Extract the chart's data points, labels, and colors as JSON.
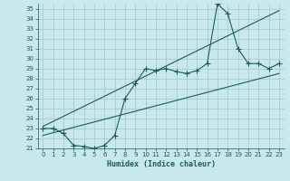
{
  "xlabel": "Humidex (Indice chaleur)",
  "bg_color": "#c8e8ec",
  "grid_color": "#a0c8cc",
  "line_color": "#1a5c5c",
  "xlim": [
    -0.5,
    23.5
  ],
  "ylim": [
    21.0,
    35.5
  ],
  "xticks": [
    0,
    1,
    2,
    3,
    4,
    5,
    6,
    7,
    8,
    9,
    10,
    11,
    12,
    13,
    14,
    15,
    16,
    17,
    18,
    19,
    20,
    21,
    22,
    23
  ],
  "yticks": [
    21,
    22,
    23,
    24,
    25,
    26,
    27,
    28,
    29,
    30,
    31,
    32,
    33,
    34,
    35
  ],
  "main_y": [
    23.0,
    23.0,
    22.5,
    21.3,
    21.2,
    21.0,
    21.3,
    22.3,
    26.0,
    27.5,
    29.0,
    28.8,
    29.0,
    28.7,
    28.5,
    28.8,
    29.5,
    35.5,
    34.5,
    31.0,
    29.5,
    29.5,
    29.0,
    29.5
  ],
  "lower_line_x": [
    0,
    23
  ],
  "lower_line_y": [
    22.3,
    28.5
  ],
  "upper_line_x": [
    0,
    23
  ],
  "upper_line_y": [
    23.2,
    34.8
  ]
}
